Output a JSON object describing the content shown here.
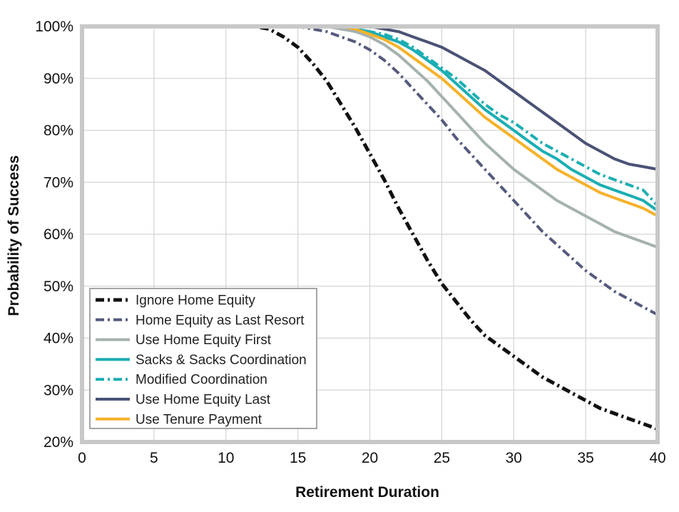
{
  "chart_data": {
    "type": "line",
    "title": "",
    "xlabel": "Retirement Duration",
    "ylabel": "Probability of Success",
    "xlim": [
      0,
      40
    ],
    "ylim": [
      20,
      100
    ],
    "x_ticks": [
      0,
      5,
      10,
      15,
      20,
      25,
      30,
      35,
      40
    ],
    "x_tick_labels": [
      "0",
      "5",
      "10",
      "15",
      "20",
      "25",
      "30",
      "35",
      "40"
    ],
    "y_ticks": [
      20,
      30,
      40,
      50,
      60,
      70,
      80,
      90,
      100
    ],
    "y_tick_labels": [
      "20%",
      "30%",
      "40%",
      "50%",
      "60%",
      "70%",
      "80%",
      "90%",
      "100%"
    ],
    "grid": true,
    "legend_position": "bottom-left",
    "x": [
      0,
      5,
      10,
      12,
      13,
      14,
      15,
      16,
      17,
      18,
      19,
      20,
      21,
      22,
      23,
      24,
      25,
      26,
      27,
      28,
      29,
      30,
      31,
      32,
      33,
      34,
      35,
      36,
      37,
      38,
      39,
      40
    ],
    "series": [
      {
        "name": "Ignore Home Equity",
        "color": "#111111",
        "dash": "dashdot",
        "values": [
          100,
          100,
          100,
          100,
          99.5,
          98,
          96,
          93,
          89.5,
          85,
          80.5,
          75.5,
          70.5,
          65,
          60,
          55,
          50.5,
          47,
          43.5,
          40.5,
          38.5,
          36.5,
          34.5,
          32.5,
          31,
          29.5,
          28,
          26.5,
          25.5,
          24.5,
          23.5,
          22.5
        ]
      },
      {
        "name": "Home Equity as Last Resort",
        "color": "#555a7d",
        "dash": "dashdot",
        "values": [
          100,
          100,
          100,
          100,
          100,
          100,
          100,
          99.5,
          99,
          98,
          97,
          95.5,
          93.5,
          91,
          88,
          85,
          82,
          78.5,
          75.5,
          72.5,
          69.5,
          66.5,
          63.5,
          60.5,
          58,
          55.5,
          53,
          51,
          49,
          47.5,
          46,
          44.5
        ]
      },
      {
        "name": "Use Home Equity First",
        "color": "#a5b2ae",
        "dash": "solid",
        "values": [
          100,
          100,
          100,
          100,
          100,
          100,
          100,
          100,
          100,
          99.5,
          99,
          98,
          96.5,
          94.5,
          92,
          89.5,
          86.5,
          83.5,
          80.5,
          77.5,
          75,
          72.5,
          70.5,
          68.5,
          66.5,
          65,
          63.5,
          62,
          60.5,
          59.5,
          58.5,
          57.5
        ]
      },
      {
        "name": "Sacks & Sacks Coordination",
        "color": "#1aaeb3",
        "dash": "solid",
        "values": [
          100,
          100,
          100,
          100,
          100,
          100,
          100,
          100,
          100,
          100,
          99.5,
          99,
          98,
          97,
          95.5,
          93.5,
          91.5,
          89,
          86.5,
          84,
          82,
          80,
          78,
          76,
          74.5,
          72.5,
          71,
          69.5,
          68.5,
          67.5,
          66.5,
          64.5
        ]
      },
      {
        "name": "Modified Coordination",
        "color": "#1aaeb3",
        "dash": "dashdot",
        "values": [
          100,
          100,
          100,
          100,
          100,
          100,
          100,
          100,
          100,
          100,
          99.5,
          99,
          98.5,
          97.5,
          96,
          94,
          92,
          90,
          87.5,
          85,
          83,
          81.5,
          79.5,
          77.5,
          76,
          74.5,
          73,
          71.5,
          70.5,
          69.5,
          68.5,
          65.5
        ]
      },
      {
        "name": "Use Home Equity Last",
        "color": "#4a5276",
        "dash": "solid",
        "values": [
          100,
          100,
          100,
          100,
          100,
          100,
          100,
          100,
          100,
          100,
          100,
          100,
          99.5,
          99,
          98,
          97,
          96,
          94.5,
          93,
          91.5,
          89.5,
          87.5,
          85.5,
          83.5,
          81.5,
          79.5,
          77.5,
          76,
          74.5,
          73.5,
          73,
          72.5
        ]
      },
      {
        "name": "Use Tenure Payment",
        "color": "#f5b22b",
        "dash": "solid",
        "values": [
          100,
          100,
          100,
          100,
          100,
          100,
          100,
          100,
          100,
          100,
          99.5,
          98.5,
          97.5,
          96,
          94,
          92,
          90,
          87.5,
          85,
          82.5,
          80.5,
          78.5,
          76.5,
          74.5,
          72.5,
          71,
          69.5,
          68,
          67,
          66,
          65,
          63.5
        ]
      }
    ]
  }
}
